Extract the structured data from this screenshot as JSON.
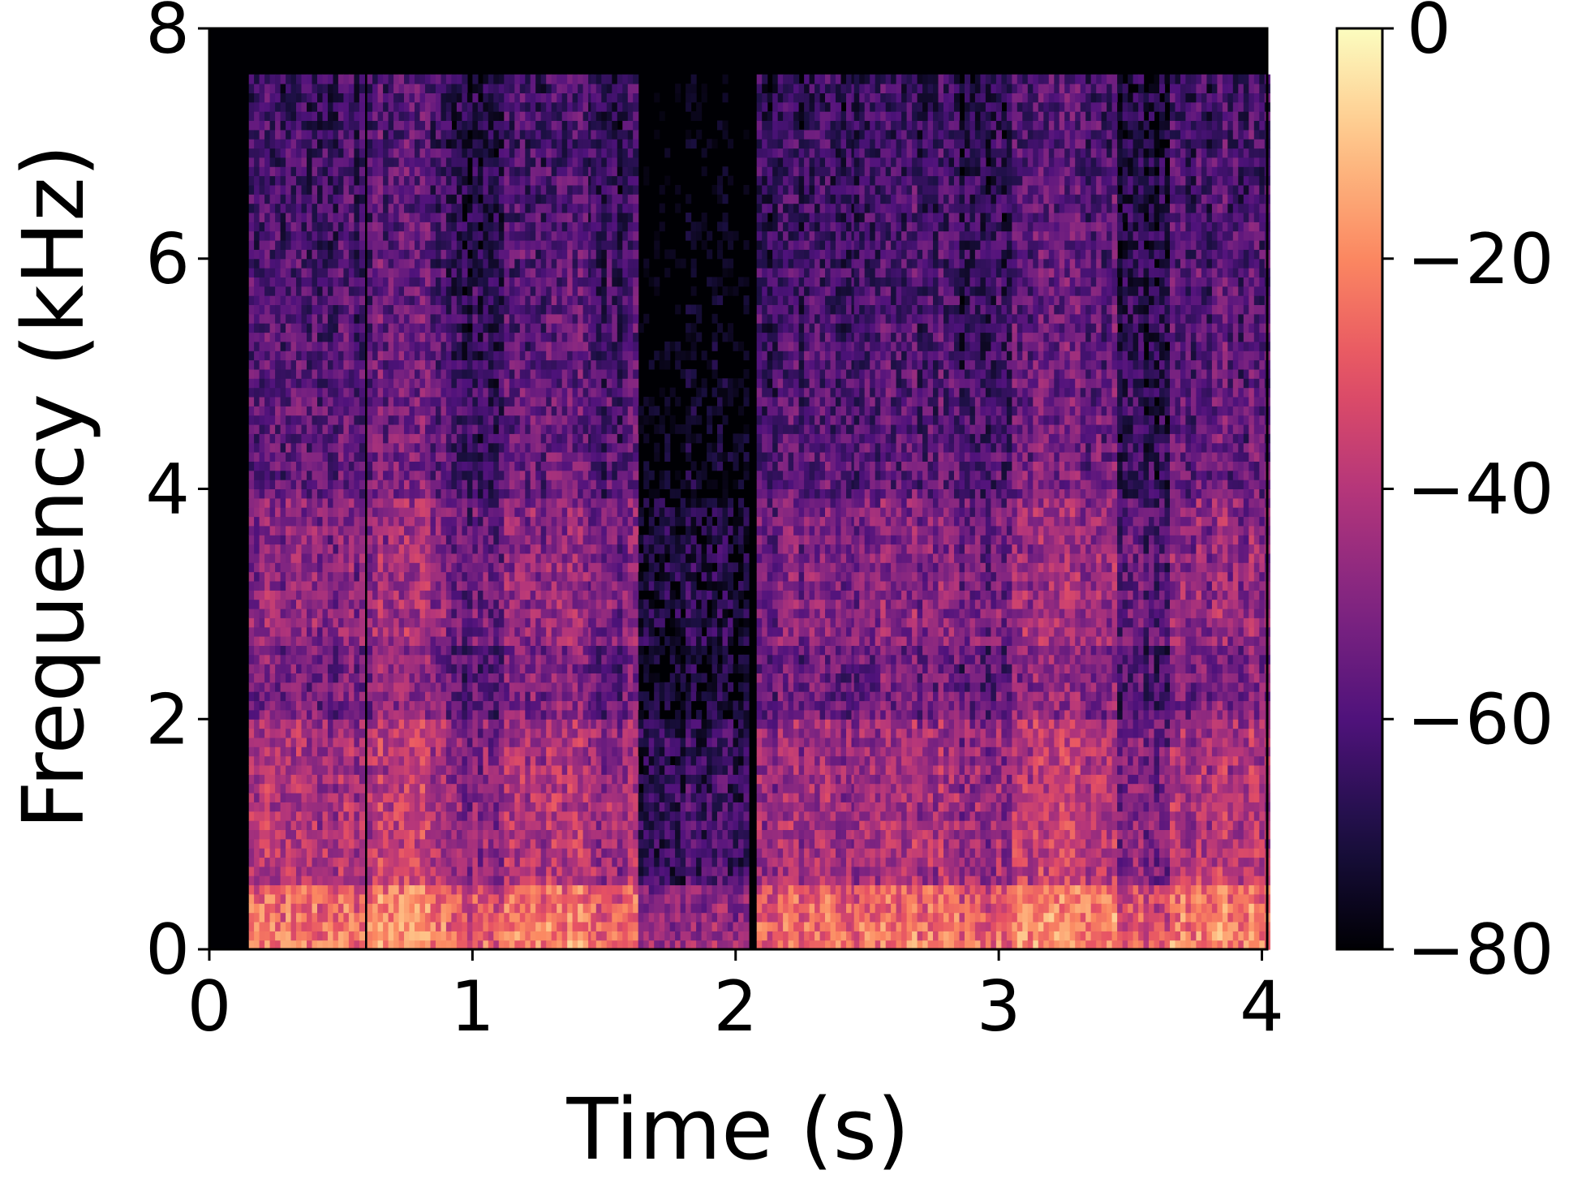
{
  "chart_data": {
    "type": "heatmap",
    "subtype": "spectrogram",
    "title": "",
    "xlabel": "Time (s)",
    "ylabel": "Frequency (kHz)",
    "xlim": [
      0,
      4.02
    ],
    "ylim": [
      0,
      8
    ],
    "x_ticks": [
      0,
      1,
      2,
      3,
      4
    ],
    "y_ticks": [
      0,
      2,
      4,
      6,
      8
    ],
    "colorbar": {
      "colormap": "magma",
      "range": [
        -80,
        0
      ],
      "ticks": [
        0,
        -20,
        -40,
        -60,
        -80
      ],
      "tick_labels": [
        "0",
        "−20",
        "−40",
        "−60",
        "−80"
      ]
    },
    "grid": false,
    "color_stops": [
      "#000004",
      "#1c1044",
      "#4f127b",
      "#812581",
      "#b5367a",
      "#e55064",
      "#fb8761",
      "#fec287",
      "#fcfdbf"
    ],
    "time_res_s": 0.02,
    "freq_res_khz": 0.08,
    "silence_level_db": -80,
    "speech_segments": [
      {
        "start_s": 0.15,
        "end_s": 0.58,
        "level_db": -48
      },
      {
        "start_s": 0.6,
        "end_s": 0.9,
        "level_db": -44
      },
      {
        "start_s": 0.9,
        "end_s": 1.12,
        "level_db": -54
      },
      {
        "start_s": 1.12,
        "end_s": 1.45,
        "level_db": -46
      },
      {
        "start_s": 1.45,
        "end_s": 1.63,
        "level_db": -50
      },
      {
        "start_s": 1.63,
        "end_s": 2.05,
        "level_db": -70
      },
      {
        "start_s": 2.08,
        "end_s": 2.45,
        "level_db": -50
      },
      {
        "start_s": 2.45,
        "end_s": 2.85,
        "level_db": -48
      },
      {
        "start_s": 2.85,
        "end_s": 3.05,
        "level_db": -52
      },
      {
        "start_s": 3.05,
        "end_s": 3.45,
        "level_db": -44
      },
      {
        "start_s": 3.45,
        "end_s": 3.65,
        "level_db": -56
      },
      {
        "start_s": 3.65,
        "end_s": 4.02,
        "level_db": -46
      }
    ],
    "band_cutoff_khz": 7.6
  }
}
